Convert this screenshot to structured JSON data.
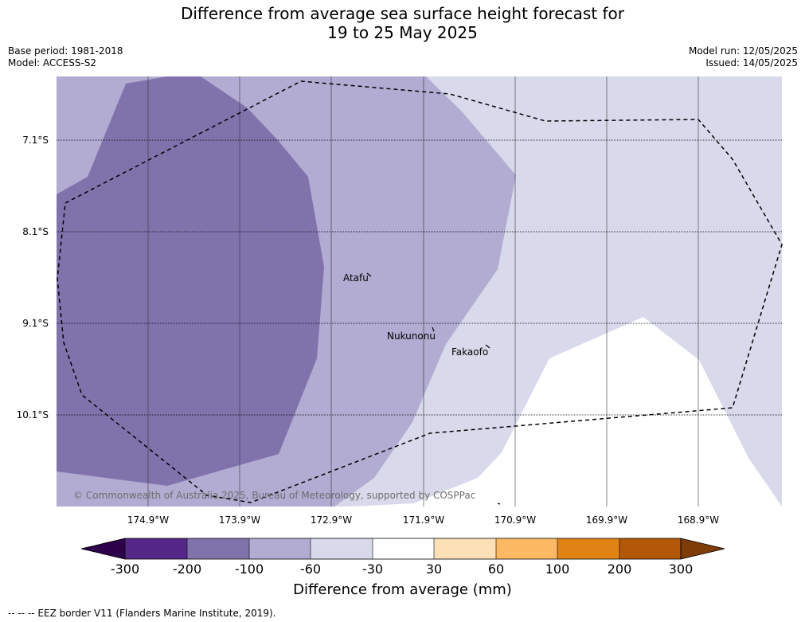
{
  "title_line1": "Difference from average sea surface height forecast for",
  "title_line2": "19 to 25 May 2025",
  "base_period": "Base period: 1981-2018",
  "model": "Model: ACCESS-S2",
  "model_run": "Model run: 12/05/2025",
  "issued": "Issued: 14/05/2025",
  "lat_labels": [
    "7.1°S",
    "8.1°S",
    "9.1°S",
    "10.1°S"
  ],
  "lon_labels": [
    "174.9°W",
    "173.9°W",
    "172.9°W",
    "171.9°W",
    "170.9°W",
    "169.9°W",
    "168.9°W"
  ],
  "places": {
    "atafu": "Atafu",
    "nukunonu": "Nukunonu",
    "fakaofo": "Fakaofo"
  },
  "copyright": "© Commonwealth of Australia 2025, Bureau of Meteorology, supported by COSPPac",
  "colorbar": {
    "title": "Difference from average (mm)",
    "ticks": [
      "-300",
      "-200",
      "-100",
      "-60",
      "-30",
      "30",
      "60",
      "100",
      "200",
      "300"
    ],
    "colors": [
      "#2d004b",
      "#542788",
      "#8073ac",
      "#b2abd2",
      "#d8daeb",
      "#ffffff",
      "#fee0b6",
      "#fdb863",
      "#e08214",
      "#b35806",
      "#7f3b08"
    ]
  },
  "eez_note": "--  --  -- EEZ border V11 (Flanders Marine Institute, 2019)."
}
